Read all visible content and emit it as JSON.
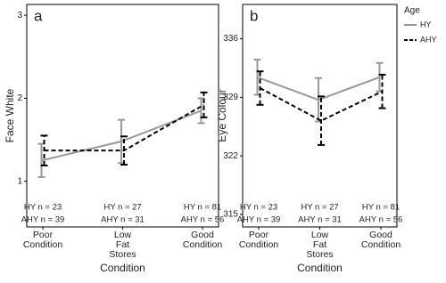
{
  "chart_data": [
    {
      "type": "line",
      "panel_label": "a",
      "y_label": "Face White",
      "x_label": "Condition",
      "categories": [
        "Poor\nCondition",
        "Low\nFat\nStores",
        "Good\nCondition"
      ],
      "ylim": [
        0.45,
        3.13
      ],
      "yticks": [
        1,
        2,
        3
      ],
      "n_labels": [
        [
          "HY n = 23",
          "AHY n = 39"
        ],
        [
          "HY n = 27",
          "AHY n = 31"
        ],
        [
          "HY n = 81",
          "AHY n = 56"
        ]
      ],
      "series": [
        {
          "name": "HY",
          "color": "#999999",
          "dash": "solid",
          "values": [
            1.25,
            1.48,
            1.85
          ],
          "errors": [
            0.2,
            0.26,
            0.15
          ]
        },
        {
          "name": "AHY",
          "color": "#000000",
          "dash": "dashed",
          "values": [
            1.37,
            1.37,
            1.92
          ],
          "errors": [
            0.18,
            0.17,
            0.15
          ]
        }
      ]
    },
    {
      "type": "line",
      "panel_label": "b",
      "y_label": "Eye Colour",
      "x_label": "Condition",
      "categories": [
        "Poor\nCondition",
        "Low\nFat\nStores",
        "Good\nCondition"
      ],
      "ylim": [
        313.5,
        340.1
      ],
      "yticks": [
        315,
        322,
        329,
        336
      ],
      "n_labels": [
        [
          "HY n = 23",
          "AHY n = 39"
        ],
        [
          "HY n = 27",
          "AHY n = 31"
        ],
        [
          "HY n = 81",
          "AHY n = 56"
        ]
      ],
      "legend_title": "Age",
      "legend_position": "right",
      "series": [
        {
          "name": "HY",
          "color": "#999999",
          "dash": "solid",
          "values": [
            331.4,
            328.7,
            331.4
          ],
          "errors": [
            2.1,
            2.6,
            1.7
          ]
        },
        {
          "name": "AHY",
          "color": "#000000",
          "dash": "dashed",
          "values": [
            330.1,
            326.2,
            329.7
          ],
          "errors": [
            2.0,
            2.9,
            2.0
          ]
        }
      ]
    }
  ]
}
